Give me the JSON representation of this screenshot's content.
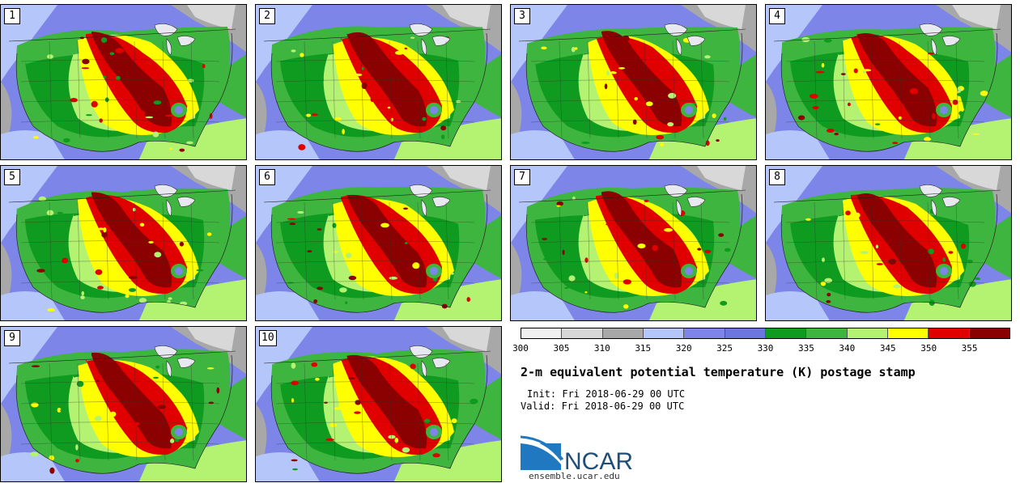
{
  "panels": [
    {
      "label": "1"
    },
    {
      "label": "2"
    },
    {
      "label": "3"
    },
    {
      "label": "4"
    },
    {
      "label": "5"
    },
    {
      "label": "6"
    },
    {
      "label": "7"
    },
    {
      "label": "8"
    },
    {
      "label": "9"
    },
    {
      "label": "10"
    }
  ],
  "colorbar": {
    "colors": [
      "#f0f0f0",
      "#d8d8d8",
      "#a8a8a8",
      "#b4c6fa",
      "#7d86e8",
      "#6d75de",
      "#0f9b1f",
      "#3eb53e",
      "#b4f271",
      "#ffff00",
      "#e00000",
      "#8b0000"
    ],
    "ticks": [
      "300",
      "305",
      "310",
      "315",
      "320",
      "325",
      "330",
      "335",
      "340",
      "345",
      "350",
      "355"
    ]
  },
  "title": "2-m equivalent potential temperature (K) postage stamp",
  "init": "Init: Fri 2018-06-29 00 UTC",
  "valid": "Valid: Fri 2018-06-29 00 UTC",
  "logo": {
    "text": "NCAR",
    "url_text": "ensemble.ucar.edu"
  }
}
